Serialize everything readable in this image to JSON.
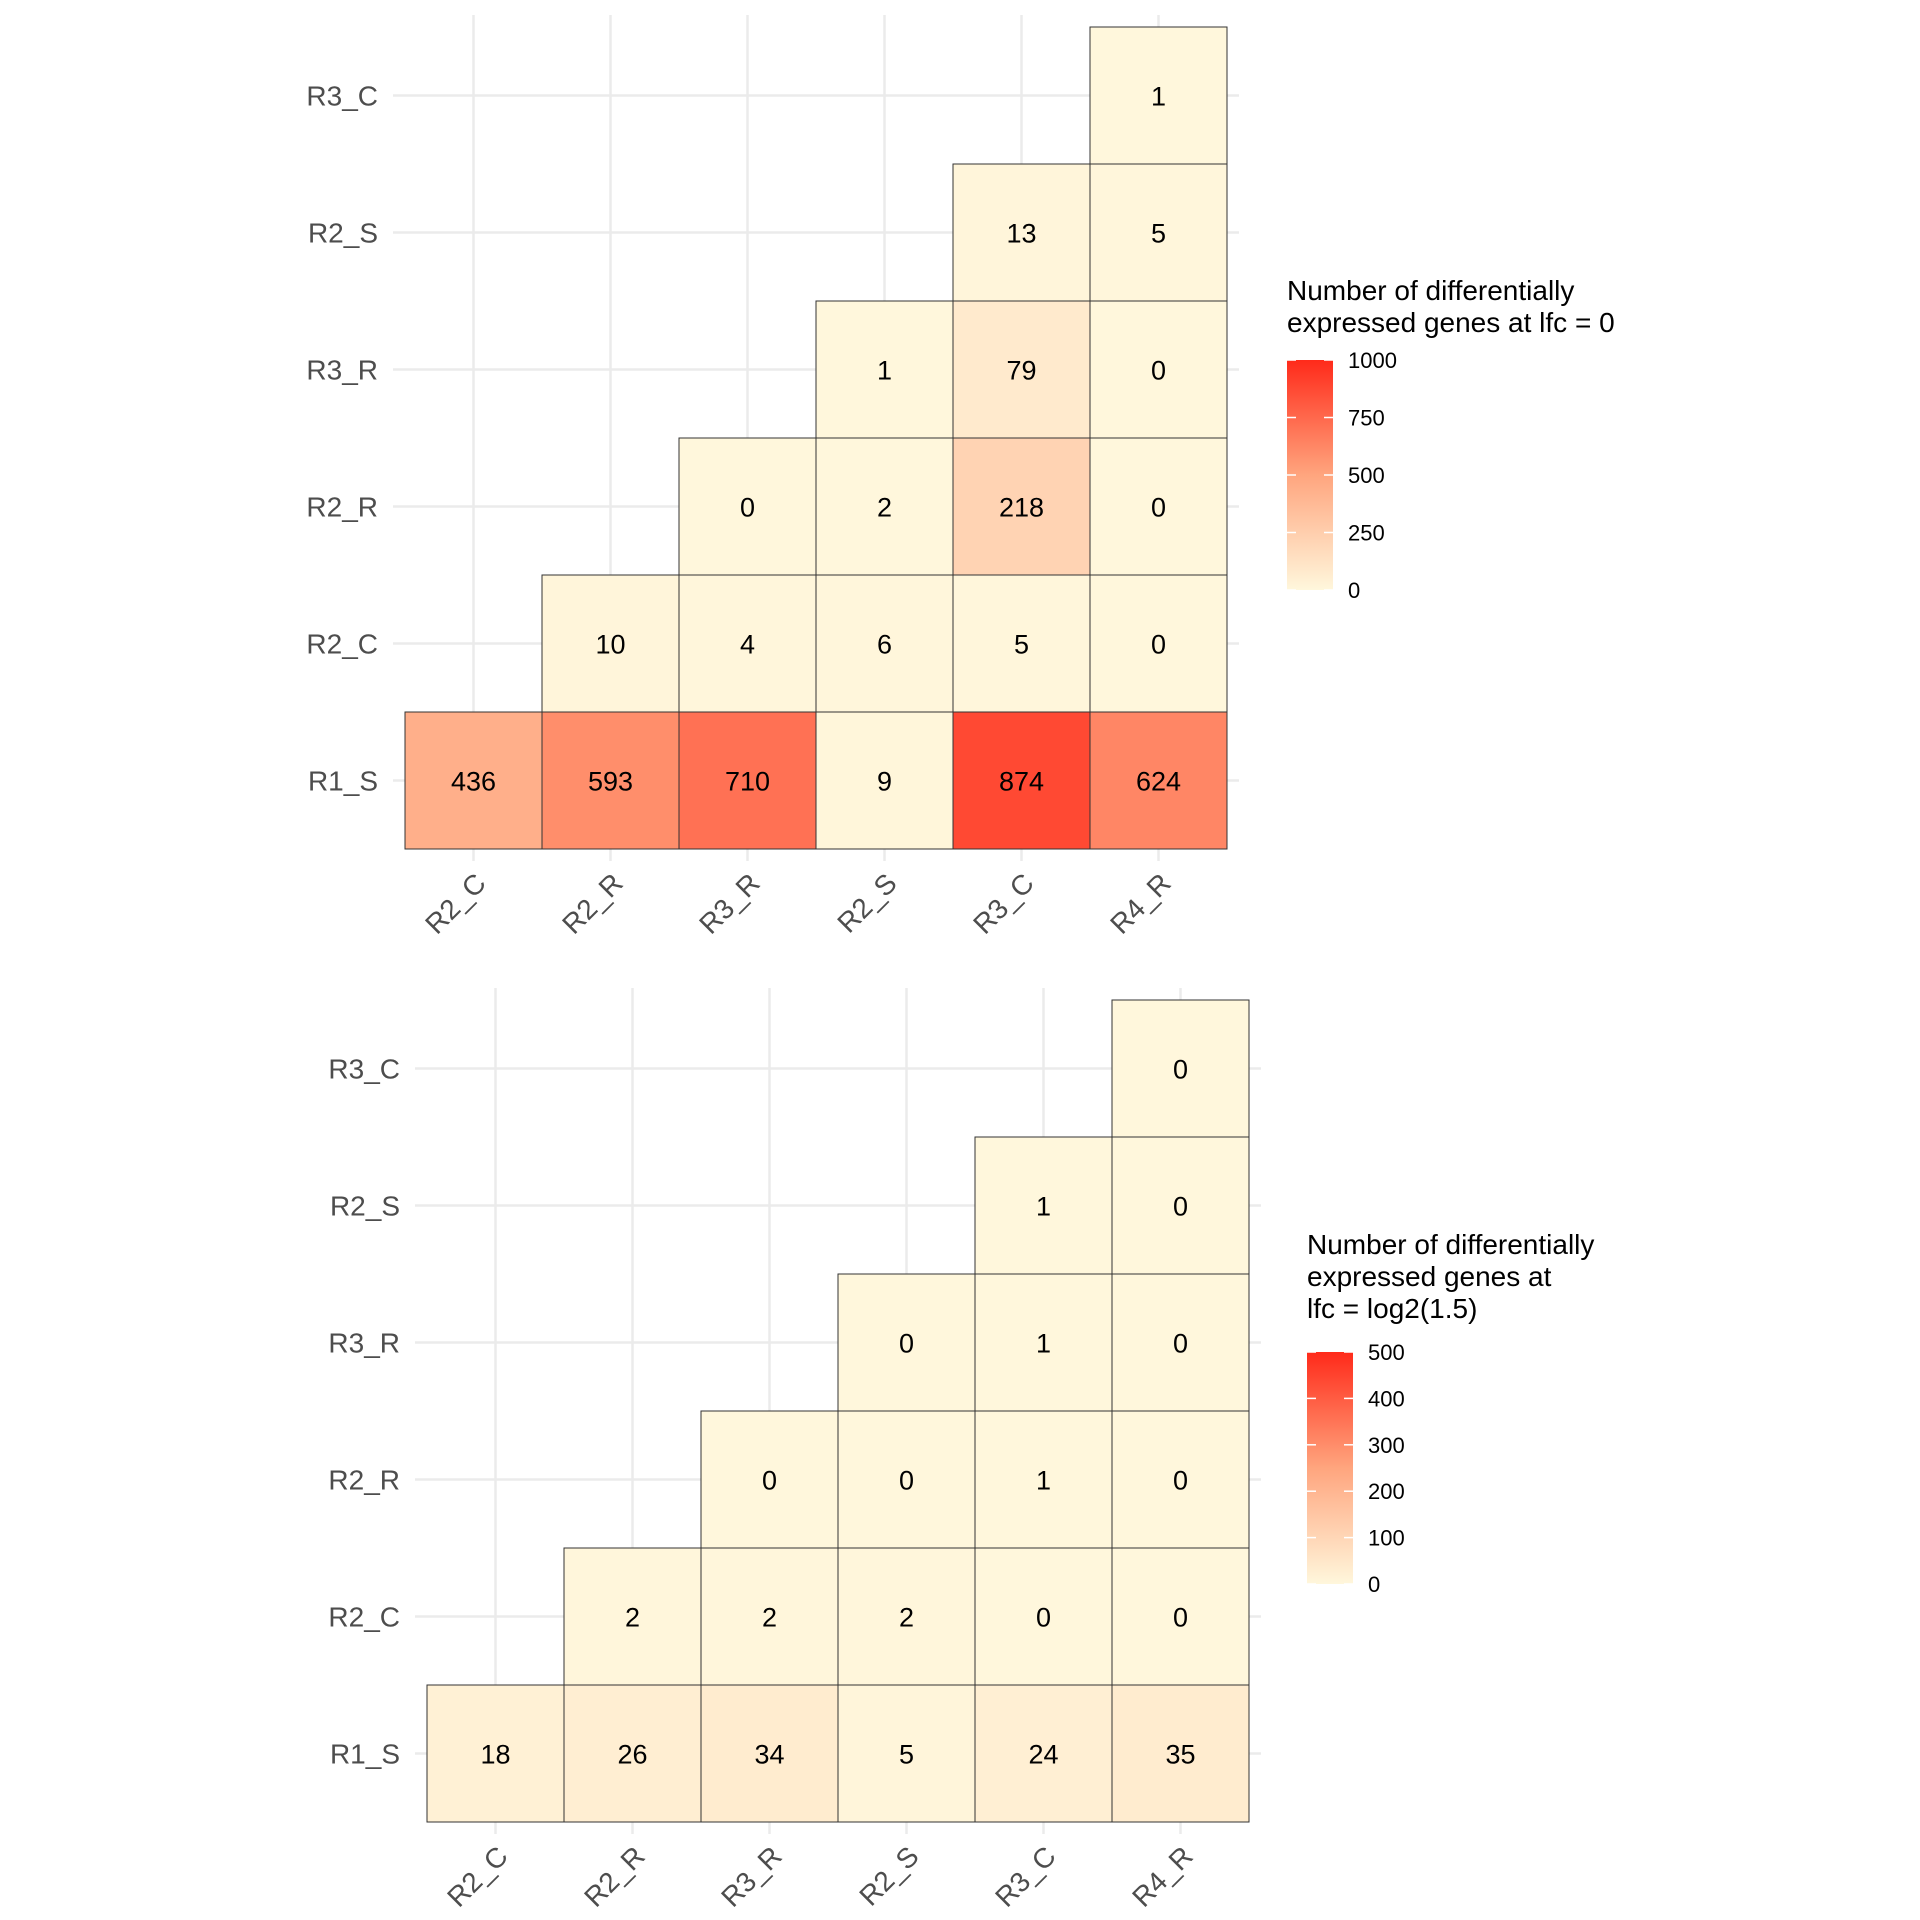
{
  "colors": {
    "low": "#FFF7DC",
    "mid": "#FFA57E",
    "high": "#FF2A1A",
    "grid": "#EBEBEB",
    "cell_border": "#333333"
  },
  "chart_data": [
    {
      "type": "heatmap",
      "x_categories": [
        "R2_C",
        "R2_R",
        "R3_R",
        "R2_S",
        "R3_C",
        "R4_R"
      ],
      "y_categories": [
        "R1_S",
        "R2_C",
        "R2_R",
        "R3_R",
        "R2_S",
        "R3_C"
      ],
      "cells": [
        {
          "x": "R2_C",
          "y": "R1_S",
          "value": 436
        },
        {
          "x": "R2_R",
          "y": "R1_S",
          "value": 593
        },
        {
          "x": "R3_R",
          "y": "R1_S",
          "value": 710
        },
        {
          "x": "R2_S",
          "y": "R1_S",
          "value": 9
        },
        {
          "x": "R3_C",
          "y": "R1_S",
          "value": 874
        },
        {
          "x": "R4_R",
          "y": "R1_S",
          "value": 624
        },
        {
          "x": "R2_R",
          "y": "R2_C",
          "value": 10
        },
        {
          "x": "R3_R",
          "y": "R2_C",
          "value": 4
        },
        {
          "x": "R2_S",
          "y": "R2_C",
          "value": 6
        },
        {
          "x": "R3_C",
          "y": "R2_C",
          "value": 5
        },
        {
          "x": "R4_R",
          "y": "R2_C",
          "value": 0
        },
        {
          "x": "R3_R",
          "y": "R2_R",
          "value": 0
        },
        {
          "x": "R2_S",
          "y": "R2_R",
          "value": 2
        },
        {
          "x": "R3_C",
          "y": "R2_R",
          "value": 218
        },
        {
          "x": "R4_R",
          "y": "R2_R",
          "value": 0
        },
        {
          "x": "R2_S",
          "y": "R3_R",
          "value": 1
        },
        {
          "x": "R3_C",
          "y": "R3_R",
          "value": 79
        },
        {
          "x": "R4_R",
          "y": "R3_R",
          "value": 0
        },
        {
          "x": "R3_C",
          "y": "R2_S",
          "value": 13
        },
        {
          "x": "R4_R",
          "y": "R2_S",
          "value": 5
        },
        {
          "x": "R4_R",
          "y": "R3_C",
          "value": 1
        }
      ],
      "legend": {
        "title_lines": [
          "Number of differentially",
          "expressed genes at lfc = 0"
        ],
        "ticks": [
          0,
          250,
          500,
          750,
          1000
        ],
        "limits": [
          0,
          1000
        ],
        "placement": "right"
      },
      "grid": true
    },
    {
      "type": "heatmap",
      "x_categories": [
        "R2_C",
        "R2_R",
        "R3_R",
        "R2_S",
        "R3_C",
        "R4_R"
      ],
      "y_categories": [
        "R1_S",
        "R2_C",
        "R2_R",
        "R3_R",
        "R2_S",
        "R3_C"
      ],
      "cells": [
        {
          "x": "R2_C",
          "y": "R1_S",
          "value": 18
        },
        {
          "x": "R2_R",
          "y": "R1_S",
          "value": 26
        },
        {
          "x": "R3_R",
          "y": "R1_S",
          "value": 34
        },
        {
          "x": "R2_S",
          "y": "R1_S",
          "value": 5
        },
        {
          "x": "R3_C",
          "y": "R1_S",
          "value": 24
        },
        {
          "x": "R4_R",
          "y": "R1_S",
          "value": 35
        },
        {
          "x": "R2_R",
          "y": "R2_C",
          "value": 2
        },
        {
          "x": "R3_R",
          "y": "R2_C",
          "value": 2
        },
        {
          "x": "R2_S",
          "y": "R2_C",
          "value": 2
        },
        {
          "x": "R3_C",
          "y": "R2_C",
          "value": 0
        },
        {
          "x": "R4_R",
          "y": "R2_C",
          "value": 0
        },
        {
          "x": "R3_R",
          "y": "R2_R",
          "value": 0
        },
        {
          "x": "R2_S",
          "y": "R2_R",
          "value": 0
        },
        {
          "x": "R3_C",
          "y": "R2_R",
          "value": 1
        },
        {
          "x": "R4_R",
          "y": "R2_R",
          "value": 0
        },
        {
          "x": "R2_S",
          "y": "R3_R",
          "value": 0
        },
        {
          "x": "R3_C",
          "y": "R3_R",
          "value": 1
        },
        {
          "x": "R4_R",
          "y": "R3_R",
          "value": 0
        },
        {
          "x": "R3_C",
          "y": "R2_S",
          "value": 1
        },
        {
          "x": "R4_R",
          "y": "R2_S",
          "value": 0
        },
        {
          "x": "R4_R",
          "y": "R3_C",
          "value": 0
        }
      ],
      "legend": {
        "title_lines": [
          "Number of differentially",
          "expressed genes at",
          "lfc = log2(1.5)"
        ],
        "ticks": [
          0,
          100,
          200,
          300,
          400,
          500
        ],
        "limits": [
          0,
          500
        ],
        "placement": "right"
      },
      "grid": true
    }
  ]
}
